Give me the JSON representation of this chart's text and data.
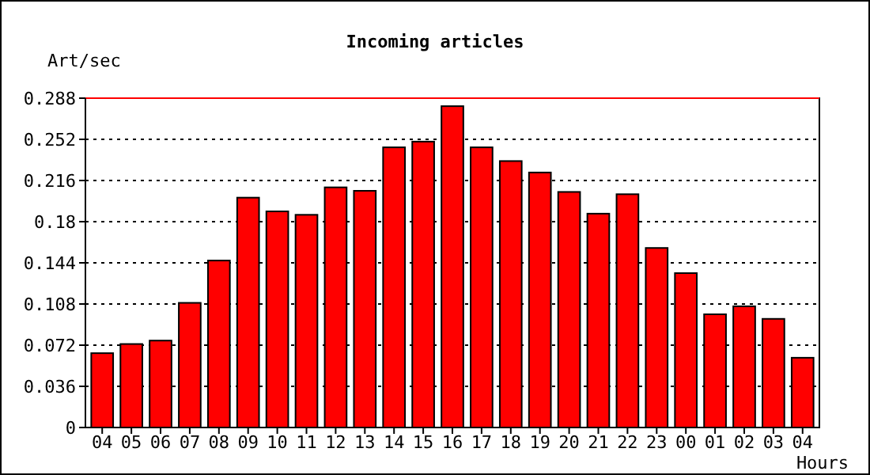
{
  "chart_data": {
    "type": "bar",
    "title": "Incoming articles",
    "ylabel": "Art/sec",
    "xlabel": "Hours",
    "categories": [
      "04",
      "05",
      "06",
      "07",
      "08",
      "09",
      "10",
      "11",
      "12",
      "13",
      "14",
      "15",
      "16",
      "17",
      "18",
      "19",
      "20",
      "21",
      "22",
      "23",
      "00",
      "01",
      "02",
      "03",
      "04"
    ],
    "values": [
      0.065,
      0.073,
      0.076,
      0.109,
      0.146,
      0.201,
      0.189,
      0.186,
      0.21,
      0.207,
      0.245,
      0.25,
      0.281,
      0.245,
      0.233,
      0.223,
      0.206,
      0.187,
      0.204,
      0.157,
      0.135,
      0.099,
      0.106,
      0.095,
      0.061
    ],
    "color": "#ff0000",
    "ylim": [
      0,
      0.288
    ],
    "yticks": [
      0,
      0.036,
      0.072,
      0.108,
      0.144,
      0.18,
      0.216,
      0.252,
      0.288
    ],
    "grid": "y"
  }
}
